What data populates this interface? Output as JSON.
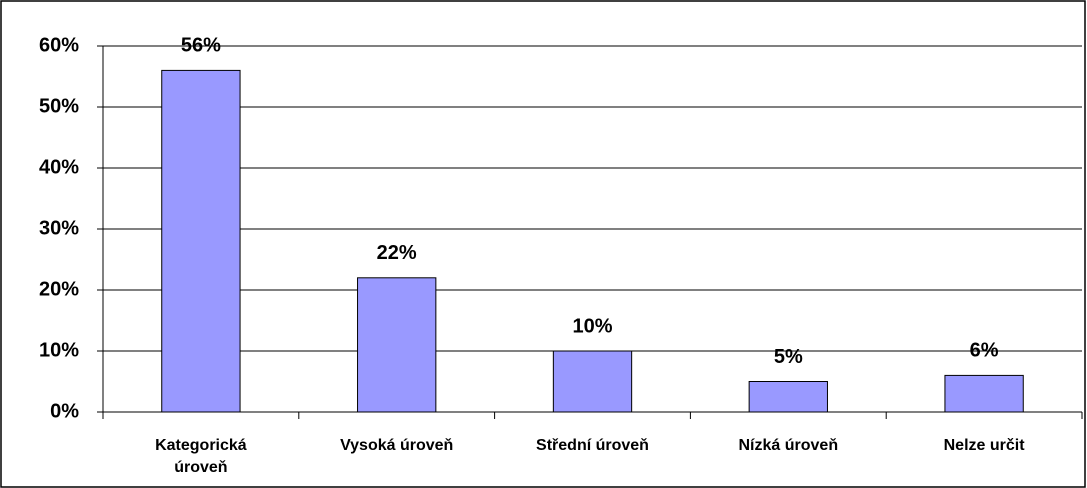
{
  "chart_data": {
    "type": "bar",
    "categories": [
      "Kategorická úroveň",
      "Vysoká úroveň",
      "Střední úroveň",
      "Nízká úroveň",
      "Nelze určit"
    ],
    "values": [
      56,
      22,
      10,
      5,
      6
    ],
    "value_labels": [
      "56%",
      "22%",
      "10%",
      "5%",
      "6%"
    ],
    "color": "#9999ff",
    "ylim": [
      0,
      60
    ],
    "yticks": [
      {
        "value": 0,
        "label": "0%"
      },
      {
        "value": 10,
        "label": "10%"
      },
      {
        "value": 20,
        "label": "20%"
      },
      {
        "value": 30,
        "label": "30%"
      },
      {
        "value": 40,
        "label": "40%"
      },
      {
        "value": 50,
        "label": "50%"
      },
      {
        "value": 60,
        "label": "60%"
      }
    ],
    "grid": true
  }
}
